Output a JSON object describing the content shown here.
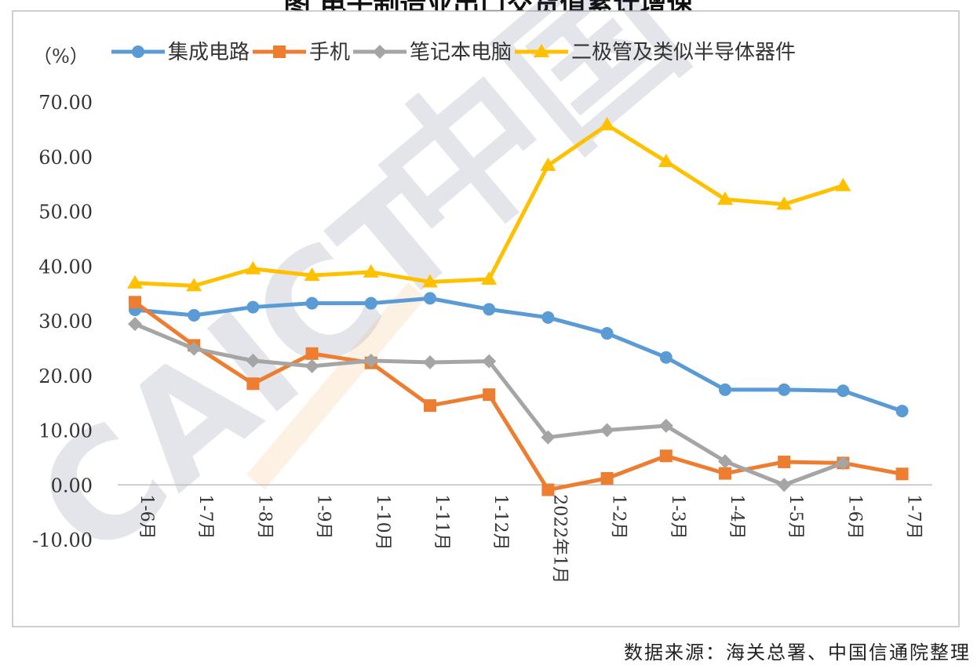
{
  "chart_data": {
    "type": "line",
    "title": "",
    "yunit": "（%）",
    "ylim": [
      -10,
      70
    ],
    "ytick_step": 10,
    "ytick_labels": [
      "-10.00",
      "0.00",
      "10.00",
      "20.00",
      "30.00",
      "40.00",
      "50.00",
      "60.00",
      "70.00"
    ],
    "categories": [
      "1-6月",
      "1-7月",
      "1-8月",
      "1-9月",
      "1-10月",
      "1-11月",
      "1-12月",
      "2022年1月",
      "1-2月",
      "1-3月",
      "1-4月",
      "1-5月",
      "1-6月",
      "1-7月"
    ],
    "grid": false,
    "legend_position": "top",
    "series": [
      {
        "name": "集成电路",
        "color": "#5B9BD5",
        "marker": "circle",
        "values": [
          32.0,
          31.0,
          32.5,
          33.2,
          33.2,
          34.1,
          32.1,
          30.6,
          27.7,
          23.3,
          17.4,
          17.4,
          17.2,
          13.5
        ]
      },
      {
        "name": "手机",
        "color": "#ED7D31",
        "marker": "square",
        "values": [
          33.4,
          25.5,
          18.5,
          24.0,
          22.3,
          14.5,
          16.5,
          -0.9,
          1.2,
          5.3,
          2.1,
          4.2,
          4.0,
          2.0
        ]
      },
      {
        "name": "笔记本电脑",
        "color": "#A5A5A5",
        "marker": "diamond",
        "values": [
          29.4,
          24.9,
          22.7,
          21.7,
          22.7,
          22.4,
          22.6,
          8.7,
          10.0,
          10.8,
          4.3,
          0.0,
          4.0,
          null
        ]
      },
      {
        "name": "二极管及类似半导体器件",
        "color": "#FFC000",
        "marker": "triangle",
        "values": [
          36.9,
          36.4,
          39.5,
          38.3,
          38.9,
          37.1,
          37.6,
          58.4,
          65.8,
          59.1,
          52.2,
          51.3,
          54.7,
          null
        ]
      }
    ]
  },
  "title_partial": "图 电子制造业出口交货值累计增速",
  "watermark": "CAICT 中国信通院",
  "source_note": "数据来源：海关总署、中国信通院整理"
}
